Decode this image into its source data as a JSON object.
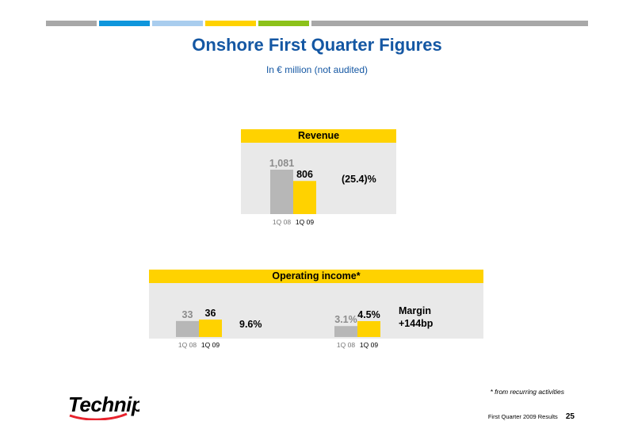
{
  "header": {
    "title": "Onshore First Quarter Figures",
    "subtitle": "In € million (not audited)",
    "bar_colors": [
      "#a8a8a8",
      "#0f96dc",
      "#a9cdee",
      "#ffd200",
      "#8cc21a",
      "#a8a8a8"
    ]
  },
  "colors": {
    "prior": "#b7b7b7",
    "current": "#ffd200",
    "prior_label": "#8c8c8c",
    "panel_bg": "#e9e9e9",
    "title_blue": "#1457a3"
  },
  "chart_data": [
    {
      "type": "bar",
      "title": "Revenue",
      "categories": [
        "1Q 08",
        "1Q 09"
      ],
      "values": [
        1081,
        806
      ],
      "value_labels": [
        "1,081",
        "806"
      ],
      "annotation": "(25.4)%"
    },
    {
      "type": "bar",
      "title": "Operating income*",
      "categories": [
        "1Q 08",
        "1Q 09"
      ],
      "values": [
        33,
        36
      ],
      "value_labels": [
        "33",
        "36"
      ],
      "annotation": "9.6%"
    },
    {
      "type": "bar",
      "title": "",
      "categories": [
        "1Q 08",
        "1Q 09"
      ],
      "values": [
        3.1,
        4.5
      ],
      "value_labels": [
        "3.1%",
        "4.5%"
      ],
      "annotation": "Margin +144bp",
      "annotation_lines": [
        "Margin",
        "+144bp"
      ]
    }
  ],
  "footnote": "* from recurring activities",
  "logo": {
    "text": "Technip",
    "icon": "technip-logo"
  },
  "footer": {
    "text": "First Quarter 2009 Results",
    "page": "25"
  }
}
